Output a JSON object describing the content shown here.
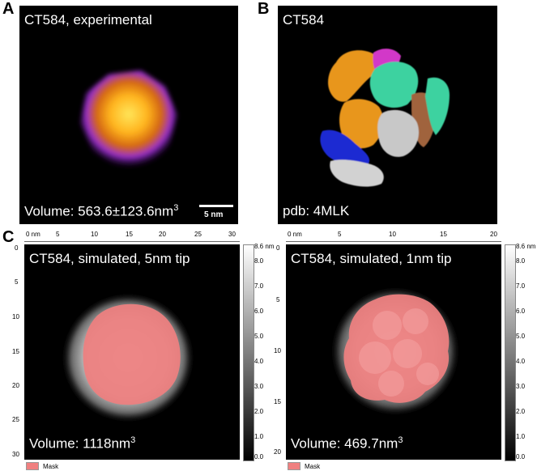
{
  "letters": {
    "a": "A",
    "b": "B",
    "c": "C"
  },
  "panel_a": {
    "title": "CT584, experimental",
    "volume_label": "Volume: 563.6±123.6nm",
    "volume_sup": "3",
    "scalebar_label": "5 nm"
  },
  "panel_b": {
    "title": "CT584",
    "pdb_label": "pdb: 4MLK"
  },
  "panel_c1": {
    "title": "CT584, simulated, 5nm tip",
    "volume_label": "Volume: 1118nm",
    "volume_sup": "3",
    "x_ticks": [
      "0 nm",
      "5",
      "10",
      "15",
      "20",
      "25",
      "30"
    ],
    "y_ticks": [
      "0",
      "5",
      "10",
      "15",
      "20",
      "25",
      "30"
    ],
    "scale_ticks": [
      "8.6 nm",
      "8.0",
      "7.0",
      "6.0",
      "5.0",
      "4.0",
      "3.0",
      "2.0",
      "1.0",
      "0.0"
    ],
    "mask_label": "Mask"
  },
  "panel_c2": {
    "title": "CT584, simulated, 1nm tip",
    "volume_label": "Volume: 469.7nm",
    "volume_sup": "3",
    "x_ticks": [
      "0 nm",
      "5",
      "10",
      "15",
      "20"
    ],
    "y_ticks": [
      "0",
      "5",
      "10",
      "15",
      "20"
    ],
    "scale_ticks": [
      "8.6 nm",
      "8.0",
      "7.0",
      "6.0",
      "5.0",
      "4.0",
      "3.0",
      "2.0",
      "1.0",
      "0.0"
    ],
    "mask_label": "Mask"
  },
  "colors": {
    "mask": "#f08080",
    "afm_core": "#ffd23c",
    "afm_edge": "#8a2be2"
  }
}
